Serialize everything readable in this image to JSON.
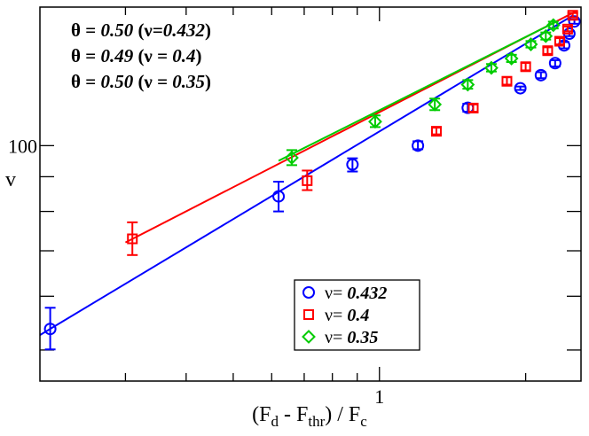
{
  "chart_data": {
    "type": "scatter",
    "scale": {
      "x": "log",
      "y": "log"
    },
    "xlabel": {
      "base": "(F",
      "sub1": "d",
      "mid": " - F",
      "sub2": "thr",
      "tail": ") / F",
      "sub3": "c"
    },
    "ylabel": "v",
    "xlim": [
      0.2,
      2.6
    ],
    "ylim": [
      45,
      160
    ],
    "x_tick_labels": [
      {
        "value": 1,
        "label": "1"
      }
    ],
    "y_tick_labels": [
      {
        "value": 100,
        "label": "100"
      }
    ],
    "x_minor_ticks": [
      0.3,
      0.4,
      0.5,
      0.6,
      0.7,
      0.8,
      0.9,
      2
    ],
    "y_major_ticks": [
      50,
      60,
      70,
      80,
      90,
      100
    ],
    "annotations": [
      {
        "prefix": "θ = ",
        "theta": "0.50",
        "open": " (ν",
        "eq": "=",
        "nu": "0.432",
        "close": ")"
      },
      {
        "prefix": "θ = ",
        "theta": "0.49",
        "open": " (ν",
        "eq": " = ",
        "nu": "0.4",
        "close": ")"
      },
      {
        "prefix": "θ = ",
        "theta": "0.50",
        "open": " (ν",
        "eq": " = ",
        "nu": "0.35",
        "close": ")"
      }
    ],
    "legend_position": "bottom-right",
    "series": [
      {
        "name": "ν= 0.432",
        "legend_prefix": "ν= ",
        "legend_value": "0.432",
        "marker": "circle",
        "color": "#0000ff",
        "fit": {
          "x": [
            0.2,
            2.5
          ],
          "y": [
            52.6,
            155.5
          ]
        },
        "points": [
          {
            "x": 0.21,
            "y": 53.7,
            "lo": 50.1,
            "hi": 57.7
          },
          {
            "x": 0.62,
            "y": 84.2,
            "lo": 80.0,
            "hi": 88.5
          },
          {
            "x": 0.88,
            "y": 93.8,
            "lo": 91.6,
            "hi": 95.8
          },
          {
            "x": 1.2,
            "y": 100.0,
            "lo": 98.8,
            "hi": 101.5
          },
          {
            "x": 1.52,
            "y": 113.7,
            "lo": 112.2,
            "hi": 115.3
          },
          {
            "x": 1.95,
            "y": 121.5,
            "lo": 120.8,
            "hi": 122.2
          },
          {
            "x": 2.15,
            "y": 127.0,
            "lo": 125.7,
            "hi": 128.3
          },
          {
            "x": 2.3,
            "y": 132.3,
            "lo": 130.8,
            "hi": 133.6
          },
          {
            "x": 2.4,
            "y": 140.5,
            "lo": 139.1,
            "hi": 142.1
          },
          {
            "x": 2.46,
            "y": 146.2,
            "lo": 145.0,
            "hi": 147.4
          },
          {
            "x": 2.52,
            "y": 152.4,
            "lo": 151.2,
            "hi": 153.5
          }
        ]
      },
      {
        "name": "ν= 0.4",
        "legend_prefix": "ν= ",
        "legend_value": "0.4",
        "marker": "square",
        "color": "#ff0000",
        "fit": {
          "x": [
            0.3,
            2.55
          ],
          "y": [
            72.0,
            158.0
          ]
        },
        "points": [
          {
            "x": 0.31,
            "y": 72.9,
            "lo": 69.0,
            "hi": 77.1
          },
          {
            "x": 0.71,
            "y": 88.8,
            "lo": 86.0,
            "hi": 91.9
          },
          {
            "x": 1.31,
            "y": 105.0,
            "lo": 103.9,
            "hi": 106.3
          },
          {
            "x": 1.56,
            "y": 113.6,
            "lo": 112.2,
            "hi": 115.0
          },
          {
            "x": 1.83,
            "y": 124.4,
            "lo": 123.0,
            "hi": 126.1
          },
          {
            "x": 2.0,
            "y": 130.7,
            "lo": 129.1,
            "hi": 132.4
          },
          {
            "x": 2.22,
            "y": 138.0,
            "lo": 136.5,
            "hi": 139.6
          },
          {
            "x": 2.35,
            "y": 142.5,
            "lo": 141.0,
            "hi": 144.0
          },
          {
            "x": 2.44,
            "y": 148.5,
            "lo": 147.3,
            "hi": 149.8
          },
          {
            "x": 2.5,
            "y": 155.6,
            "lo": 154.5,
            "hi": 156.8
          }
        ]
      },
      {
        "name": "ν= 0.35",
        "legend_prefix": "ν= ",
        "legend_value": "0.35",
        "marker": "diamond",
        "color": "#00cc00",
        "fit": {
          "x": [
            0.62,
            2.3
          ],
          "y": [
            95.0,
            152.0
          ]
        },
        "points": [
          {
            "x": 0.66,
            "y": 96.0,
            "lo": 93.6,
            "hi": 98.5
          },
          {
            "x": 0.98,
            "y": 108.5,
            "lo": 106.5,
            "hi": 110.8
          },
          {
            "x": 1.3,
            "y": 115.0,
            "lo": 112.8,
            "hi": 117.3
          },
          {
            "x": 1.52,
            "y": 123.0,
            "lo": 121.3,
            "hi": 124.9
          },
          {
            "x": 1.7,
            "y": 130.2,
            "lo": 128.6,
            "hi": 131.9
          },
          {
            "x": 1.87,
            "y": 134.4,
            "lo": 132.8,
            "hi": 136.1
          },
          {
            "x": 2.05,
            "y": 141.0,
            "lo": 139.5,
            "hi": 142.6
          },
          {
            "x": 2.2,
            "y": 145.0,
            "lo": 143.3,
            "hi": 146.8
          },
          {
            "x": 2.28,
            "y": 150.5,
            "lo": 148.8,
            "hi": 152.3
          }
        ]
      }
    ]
  }
}
